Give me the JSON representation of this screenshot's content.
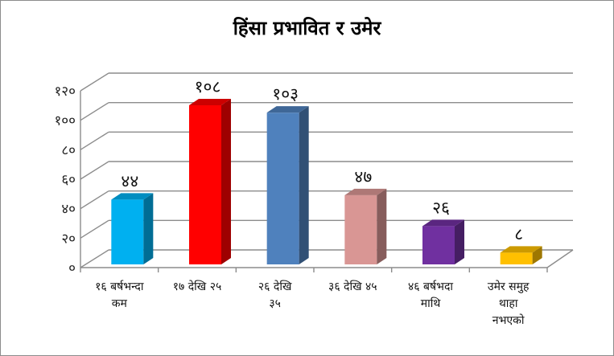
{
  "chart_data": {
    "type": "bar",
    "title": "हिंसा प्रभावित र उमेर",
    "xlabel": "",
    "ylabel": "",
    "categories": [
      [
        "१६ बर्षभन्दा",
        "कम"
      ],
      [
        "१७ देखि २५"
      ],
      [
        "२६ देखि",
        "३५"
      ],
      [
        "३६ देखि ४५"
      ],
      [
        "४६ बर्षभदा",
        "माथि"
      ],
      [
        "उमेर समुह",
        "थाहा",
        "नभएको"
      ]
    ],
    "values": [
      44,
      108,
      103,
      47,
      26,
      8
    ],
    "data_labels": [
      "४४",
      "१०८",
      "१०३",
      "४७",
      "२६",
      "८"
    ],
    "ylim": [
      0,
      120
    ],
    "yticks": [
      0,
      20,
      40,
      60,
      80,
      100,
      120
    ],
    "ytick_labels": [
      "०",
      "२०",
      "४०",
      "६०",
      "८०",
      "१००",
      "१२०"
    ],
    "grid": true,
    "legend": "none",
    "colors": [
      "#00b0f0",
      "#ff0000",
      "#4f81bd",
      "#d99694",
      "#7030a0",
      "#ffc000"
    ]
  }
}
